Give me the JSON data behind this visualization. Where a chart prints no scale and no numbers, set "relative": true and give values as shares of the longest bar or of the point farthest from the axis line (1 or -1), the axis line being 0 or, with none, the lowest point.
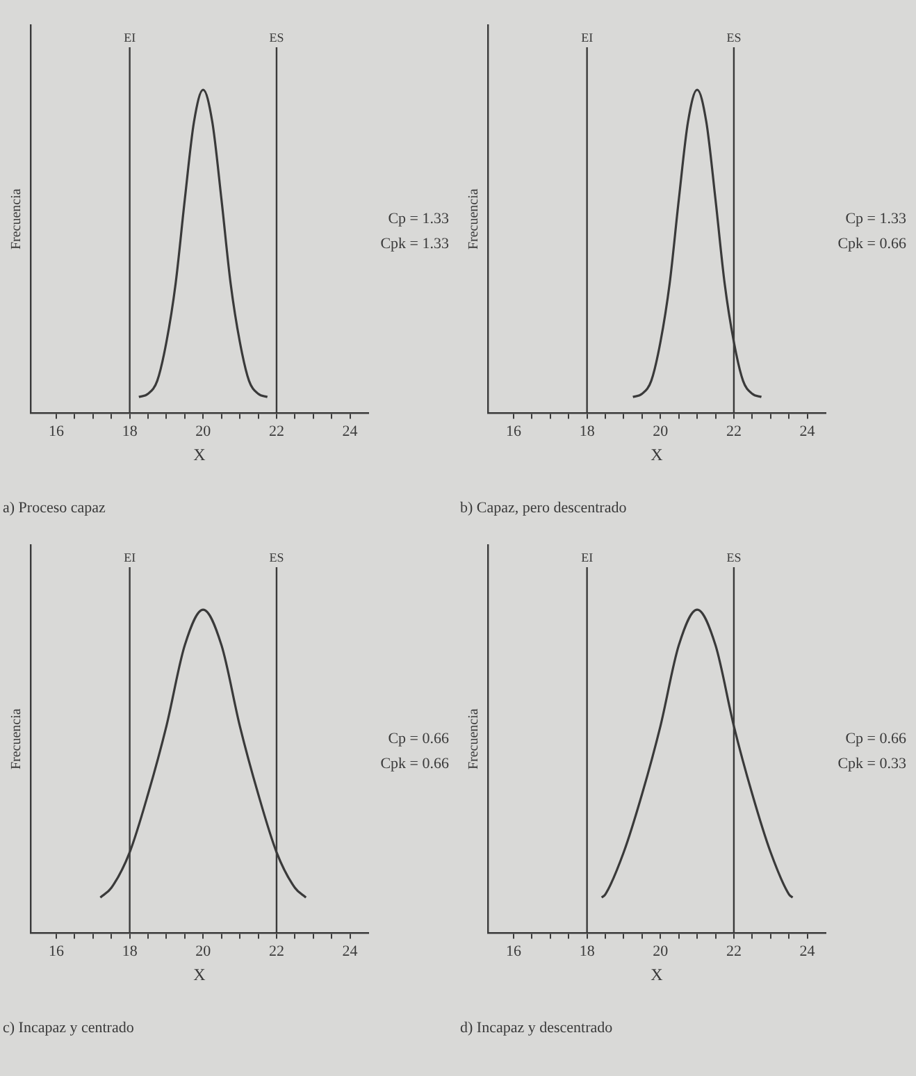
{
  "chart_data": [
    {
      "type": "line",
      "title": "a) Proceso capaz",
      "xlabel": "X",
      "ylabel": "Frecuencia",
      "relative": true,
      "xlim": [
        15.3,
        24.5
      ],
      "xticks": [
        16,
        {
          "value": 16.5,
          "label": null
        },
        {
          "value": 17,
          "label": null
        },
        {
          "value": 17.5,
          "label": null
        },
        18,
        {
          "value": 18.5,
          "label": null
        },
        {
          "value": 19,
          "label": null
        },
        {
          "value": 19.5,
          "label": null
        },
        20,
        {
          "value": 20.5,
          "label": null
        },
        {
          "value": 21,
          "label": null
        },
        {
          "value": 21.5,
          "label": null
        },
        22,
        {
          "value": 22.5,
          "label": null
        },
        {
          "value": 23,
          "label": null
        },
        {
          "value": 23.5,
          "label": null
        },
        24
      ],
      "series": [
        {
          "color": "#3a3a3a",
          "x": [
            18.25,
            18.5,
            18.75,
            19,
            19.25,
            19.5,
            19.75,
            20,
            20.25,
            20.5,
            20.75,
            21,
            21.25,
            21.5,
            21.75
          ],
          "values": [
            0.05,
            0.06,
            0.1,
            0.22,
            0.4,
            0.66,
            0.9,
            1,
            0.9,
            0.66,
            0.4,
            0.22,
            0.1,
            0.06,
            0.05
          ]
        }
      ],
      "ref_lines": [
        {
          "axis": "x",
          "value": 18,
          "label": "EI",
          "color": "#3a3a3a"
        },
        {
          "axis": "x",
          "value": 22,
          "label": "ES",
          "color": "#3a3a3a"
        }
      ],
      "annotations": [
        "Cp = 1.33",
        "Cpk = 1.33"
      ],
      "legend": false,
      "grid": false,
      "marker": "none",
      "line_style": "solid"
    },
    {
      "type": "line",
      "title": "b) Capaz, pero descentrado",
      "xlabel": "X",
      "ylabel": "Frecuencia",
      "relative": true,
      "xlim": [
        15.3,
        24.5
      ],
      "xticks": [
        16,
        {
          "value": 16.5,
          "label": null
        },
        {
          "value": 17,
          "label": null
        },
        {
          "value": 17.5,
          "label": null
        },
        18,
        {
          "value": 18.5,
          "label": null
        },
        {
          "value": 19,
          "label": null
        },
        {
          "value": 19.5,
          "label": null
        },
        20,
        {
          "value": 20.5,
          "label": null
        },
        {
          "value": 21,
          "label": null
        },
        {
          "value": 21.5,
          "label": null
        },
        22,
        {
          "value": 22.5,
          "label": null
        },
        {
          "value": 23,
          "label": null
        },
        {
          "value": 23.5,
          "label": null
        },
        24
      ],
      "series": [
        {
          "color": "#3a3a3a",
          "x": [
            19.25,
            19.5,
            19.75,
            20,
            20.25,
            20.5,
            20.75,
            21,
            21.25,
            21.5,
            21.75,
            22,
            22.25,
            22.5,
            22.75
          ],
          "values": [
            0.05,
            0.06,
            0.1,
            0.22,
            0.4,
            0.66,
            0.9,
            1,
            0.9,
            0.66,
            0.4,
            0.22,
            0.1,
            0.06,
            0.05
          ]
        }
      ],
      "ref_lines": [
        {
          "axis": "x",
          "value": 18,
          "label": "EI",
          "color": "#3a3a3a"
        },
        {
          "axis": "x",
          "value": 22,
          "label": "ES",
          "color": "#3a3a3a"
        }
      ],
      "annotations": [
        "Cp = 1.33",
        "Cpk = 0.66"
      ],
      "legend": false,
      "grid": false,
      "marker": "none",
      "line_style": "solid"
    },
    {
      "type": "line",
      "title": "c) Incapaz y centrado",
      "xlabel": "X",
      "ylabel": "Frecuencia",
      "relative": true,
      "xlim": [
        15.3,
        24.5
      ],
      "xticks": [
        16,
        {
          "value": 16.5,
          "label": null
        },
        {
          "value": 17,
          "label": null
        },
        {
          "value": 17.5,
          "label": null
        },
        18,
        {
          "value": 18.5,
          "label": null
        },
        {
          "value": 19,
          "label": null
        },
        {
          "value": 19.5,
          "label": null
        },
        20,
        {
          "value": 20.5,
          "label": null
        },
        {
          "value": 21,
          "label": null
        },
        {
          "value": 21.5,
          "label": null
        },
        22,
        {
          "value": 22.5,
          "label": null
        },
        {
          "value": 23,
          "label": null
        },
        {
          "value": 23.5,
          "label": null
        },
        24
      ],
      "series": [
        {
          "color": "#3a3a3a",
          "x": [
            17.2,
            17.5,
            18,
            18.5,
            19,
            19.5,
            20,
            20.5,
            21,
            21.5,
            22,
            22.5,
            22.8
          ],
          "values": [
            0.11,
            0.14,
            0.25,
            0.43,
            0.64,
            0.89,
            1,
            0.89,
            0.64,
            0.43,
            0.25,
            0.14,
            0.11
          ]
        }
      ],
      "ref_lines": [
        {
          "axis": "x",
          "value": 18,
          "label": "EI",
          "color": "#3a3a3a"
        },
        {
          "axis": "x",
          "value": 22,
          "label": "ES",
          "color": "#3a3a3a"
        }
      ],
      "annotations": [
        "Cp = 0.66",
        "Cpk = 0.66"
      ],
      "legend": false,
      "grid": false,
      "marker": "none",
      "line_style": "solid"
    },
    {
      "type": "line",
      "title": "d) Incapaz y descentrado",
      "xlabel": "X",
      "ylabel": "Frecuencia",
      "relative": true,
      "xlim": [
        15.3,
        24.5
      ],
      "xticks": [
        16,
        {
          "value": 16.5,
          "label": null
        },
        {
          "value": 17,
          "label": null
        },
        {
          "value": 17.5,
          "label": null
        },
        18,
        {
          "value": 18.5,
          "label": null
        },
        {
          "value": 19,
          "label": null
        },
        {
          "value": 19.5,
          "label": null
        },
        20,
        {
          "value": 20.5,
          "label": null
        },
        {
          "value": 21,
          "label": null
        },
        {
          "value": 21.5,
          "label": null
        },
        22,
        {
          "value": 22.5,
          "label": null
        },
        {
          "value": 23,
          "label": null
        },
        {
          "value": 23.5,
          "label": null
        },
        24
      ],
      "series": [
        {
          "color": "#3a3a3a",
          "x": [
            18.4,
            18.5,
            19,
            19.5,
            20,
            20.5,
            21,
            21.5,
            22,
            22.5,
            23,
            23.5,
            23.6
          ],
          "values": [
            0.11,
            0.12,
            0.25,
            0.43,
            0.64,
            0.89,
            1,
            0.89,
            0.64,
            0.43,
            0.25,
            0.12,
            0.11
          ]
        }
      ],
      "ref_lines": [
        {
          "axis": "x",
          "value": 18,
          "label": "EI",
          "color": "#3a3a3a"
        },
        {
          "axis": "x",
          "value": 22,
          "label": "ES",
          "color": "#3a3a3a"
        }
      ],
      "annotations": [
        "Cp = 0.66",
        "Cpk = 0.33"
      ],
      "legend": false,
      "grid": false,
      "marker": "none",
      "line_style": "solid"
    }
  ]
}
